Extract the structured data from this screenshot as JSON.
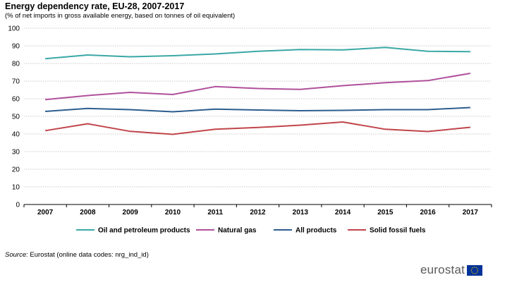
{
  "header": {
    "title": "Energy dependency rate, EU-28, 2007-2017",
    "subtitle": "(% of net imports in gross available  energy, based on tonnes of oil equivalent)"
  },
  "source": {
    "label": "Source:",
    "text": " Eurostat (online data codes: nrg_ind_id)"
  },
  "logo": {
    "text": "eurostat",
    "flag_icon": "eu-flag-icon",
    "flag_color": "#003399",
    "star_color": "#ffcc00"
  },
  "chart_data": {
    "type": "line",
    "x": [
      "2007",
      "2008",
      "2009",
      "2010",
      "2011",
      "2012",
      "2013",
      "2014",
      "2015",
      "2016",
      "2017"
    ],
    "ylim": [
      0,
      100
    ],
    "yticks": [
      0,
      10,
      20,
      30,
      40,
      50,
      60,
      70,
      80,
      90,
      100
    ],
    "grid": true,
    "legend_position": "bottom",
    "series": [
      {
        "name": "Oil and petroleum products",
        "color": "#3aa8a5",
        "values": [
          82.7,
          84.8,
          83.8,
          84.4,
          85.4,
          86.9,
          87.9,
          87.7,
          89.1,
          86.9,
          86.7
        ]
      },
      {
        "name": "Natural gas",
        "color": "#b0509c",
        "values": [
          59.5,
          61.8,
          63.6,
          62.4,
          66.9,
          65.8,
          65.3,
          67.4,
          69.1,
          70.3,
          74.4
        ]
      },
      {
        "name": "All products",
        "color": "#2d5d8e",
        "values": [
          52.8,
          54.5,
          53.8,
          52.6,
          54.1,
          53.6,
          53.2,
          53.4,
          53.8,
          53.8,
          55.0
        ]
      },
      {
        "name": "Solid fossil fuels",
        "color": "#c0454a",
        "values": [
          41.9,
          45.8,
          41.5,
          39.8,
          42.7,
          43.7,
          45.0,
          46.8,
          42.7,
          41.4,
          43.8
        ]
      }
    ]
  }
}
